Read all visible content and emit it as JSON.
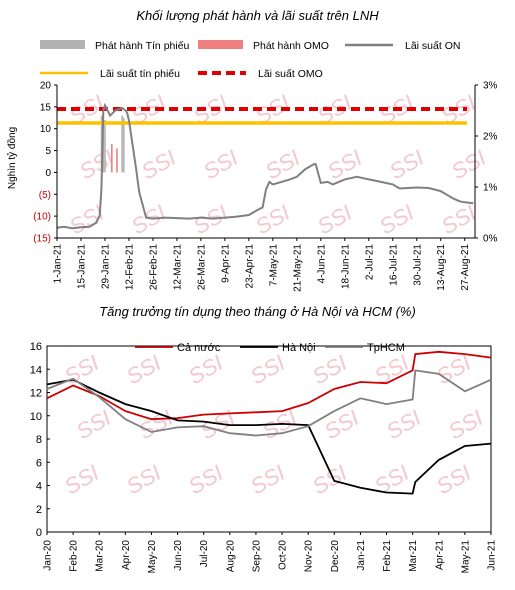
{
  "chart_data": [
    {
      "type": "line",
      "title": "Khối lượng phát hành và lãi suất trên LNH",
      "ylabel": "Nghìn tỷ đồng",
      "ylim": [
        -15,
        20
      ],
      "y2lim": [
        0,
        3
      ],
      "y_ticks": [
        "20",
        "15",
        "10",
        "5",
        "0",
        "(5)",
        "(10)",
        "(15)"
      ],
      "y_ticks_values": [
        20,
        15,
        10,
        5,
        0,
        -5,
        -10,
        -15
      ],
      "y2_ticks": [
        "3%",
        "2%",
        "1%",
        "0%"
      ],
      "y2_ticks_values": [
        3,
        2,
        1,
        0
      ],
      "x_range": [
        "2021-01-01",
        "2021-09-02"
      ],
      "x_ticks": [
        "1-Jan-21",
        "15-Jan-21",
        "29-Jan-21",
        "12-Feb-21",
        "26-Feb-21",
        "12-Mar-21",
        "26-Mar-21",
        "9-Apr-21",
        "23-Apr-21",
        "7-May-21",
        "21-May-21",
        "4-Jun-21",
        "18-Jun-21",
        "2-Jul-21",
        "16-Jul-21",
        "30-Jul-21",
        "13-Aug-21",
        "27-Aug-21"
      ],
      "x_ticks_dates": [
        "2021-01-01",
        "2021-01-15",
        "2021-01-29",
        "2021-02-12",
        "2021-02-26",
        "2021-03-12",
        "2021-03-26",
        "2021-04-09",
        "2021-04-23",
        "2021-05-07",
        "2021-05-21",
        "2021-06-04",
        "2021-06-18",
        "2021-07-02",
        "2021-07-16",
        "2021-07-30",
        "2021-08-13",
        "2021-08-27"
      ],
      "legend": [
        {
          "label": "Phát hành Tín phiếu",
          "color": "#b3b3b3",
          "style": "bar"
        },
        {
          "label": "Phát hành OMO",
          "color": "#f08080",
          "style": "bar"
        },
        {
          "label": "Lãi suất ON",
          "color": "#808080",
          "style": "line"
        },
        {
          "label": "Lãi suất tín phiếu",
          "color": "#ffc000",
          "style": "line"
        },
        {
          "label": "Lãi suất OMO",
          "color": "#e00000",
          "style": "dashed"
        }
      ],
      "series": [
        {
          "name": "Phát hành Tín phiếu",
          "axis": "left",
          "kind": "bar",
          "points": [
            {
              "x": "2021-01-27",
              "y": 13.0
            },
            {
              "x": "2021-01-28",
              "y": 14.0
            },
            {
              "x": "2021-01-29",
              "y": 12.0
            },
            {
              "x": "2021-02-08",
              "y": 13.0
            },
            {
              "x": "2021-02-09",
              "y": 12.5
            }
          ]
        },
        {
          "name": "Phát hành OMO",
          "axis": "left",
          "kind": "bar",
          "points": [
            {
              "x": "2021-02-02",
              "y": 6.5
            },
            {
              "x": "2021-02-05",
              "y": 5.5
            }
          ]
        },
        {
          "name": "Lãi suất ON",
          "axis": "right",
          "kind": "line",
          "points": [
            {
              "x": "2021-01-01",
              "y": 0.2
            },
            {
              "x": "2021-01-05",
              "y": 0.22
            },
            {
              "x": "2021-01-10",
              "y": 0.19
            },
            {
              "x": "2021-01-15",
              "y": 0.21
            },
            {
              "x": "2021-01-20",
              "y": 0.22
            },
            {
              "x": "2021-01-24",
              "y": 0.3
            },
            {
              "x": "2021-01-26",
              "y": 0.45
            },
            {
              "x": "2021-01-27",
              "y": 1.0
            },
            {
              "x": "2021-01-28",
              "y": 2.5
            },
            {
              "x": "2021-01-29",
              "y": 2.6
            },
            {
              "x": "2021-02-01",
              "y": 2.4
            },
            {
              "x": "2021-02-04",
              "y": 2.5
            },
            {
              "x": "2021-02-08",
              "y": 2.55
            },
            {
              "x": "2021-02-10",
              "y": 2.5
            },
            {
              "x": "2021-02-11",
              "y": 2.45
            },
            {
              "x": "2021-02-12",
              "y": 2.3
            },
            {
              "x": "2021-02-16",
              "y": 1.4
            },
            {
              "x": "2021-02-18",
              "y": 0.9
            },
            {
              "x": "2021-02-22",
              "y": 0.4
            },
            {
              "x": "2021-02-26",
              "y": 0.38
            },
            {
              "x": "2021-03-05",
              "y": 0.4
            },
            {
              "x": "2021-03-12",
              "y": 0.39
            },
            {
              "x": "2021-03-19",
              "y": 0.38
            },
            {
              "x": "2021-03-26",
              "y": 0.4
            },
            {
              "x": "2021-04-02",
              "y": 0.38
            },
            {
              "x": "2021-04-09",
              "y": 0.4
            },
            {
              "x": "2021-04-16",
              "y": 0.42
            },
            {
              "x": "2021-04-23",
              "y": 0.45
            },
            {
              "x": "2021-04-28",
              "y": 0.55
            },
            {
              "x": "2021-05-01",
              "y": 0.6
            },
            {
              "x": "2021-05-03",
              "y": 0.95
            },
            {
              "x": "2021-05-05",
              "y": 1.1
            },
            {
              "x": "2021-05-07",
              "y": 1.05
            },
            {
              "x": "2021-05-12",
              "y": 1.1
            },
            {
              "x": "2021-05-17",
              "y": 1.15
            },
            {
              "x": "2021-05-21",
              "y": 1.2
            },
            {
              "x": "2021-05-26",
              "y": 1.35
            },
            {
              "x": "2021-05-31",
              "y": 1.45
            },
            {
              "x": "2021-06-01",
              "y": 1.45
            },
            {
              "x": "2021-06-03",
              "y": 1.2
            },
            {
              "x": "2021-06-04",
              "y": 1.08
            },
            {
              "x": "2021-06-08",
              "y": 1.1
            },
            {
              "x": "2021-06-11",
              "y": 1.05
            },
            {
              "x": "2021-06-18",
              "y": 1.15
            },
            {
              "x": "2021-06-25",
              "y": 1.2
            },
            {
              "x": "2021-07-02",
              "y": 1.15
            },
            {
              "x": "2021-07-09",
              "y": 1.1
            },
            {
              "x": "2021-07-16",
              "y": 1.05
            },
            {
              "x": "2021-07-20",
              "y": 0.97
            },
            {
              "x": "2021-07-30",
              "y": 0.99
            },
            {
              "x": "2021-08-06",
              "y": 0.98
            },
            {
              "x": "2021-08-13",
              "y": 0.92
            },
            {
              "x": "2021-08-17",
              "y": 0.84
            },
            {
              "x": "2021-08-20",
              "y": 0.78
            },
            {
              "x": "2021-08-24",
              "y": 0.72
            },
            {
              "x": "2021-08-27",
              "y": 0.7
            },
            {
              "x": "2021-09-01",
              "y": 0.68
            }
          ]
        },
        {
          "name": "Lãi suất tín phiếu",
          "axis": "left",
          "kind": "hline",
          "y": 11.3
        },
        {
          "name": "Lãi suất OMO",
          "axis": "left",
          "kind": "hline",
          "y": 14.5
        }
      ]
    },
    {
      "type": "line",
      "title": "Tăng trưởng tín dụng theo tháng ở Hà Nội và HCM (%)",
      "ylim": [
        0,
        16
      ],
      "y_ticks": [
        "0",
        "2",
        "4",
        "6",
        "8",
        "10",
        "12",
        "14",
        "16"
      ],
      "y_ticks_values": [
        0,
        2,
        4,
        6,
        8,
        10,
        12,
        14,
        16
      ],
      "categories": [
        "Jan-20",
        "Feb-20",
        "Mar-20",
        "Apr-20",
        "May-20",
        "Jun-20",
        "Jul-20",
        "Aug-20",
        "Sep-20",
        "Oct-20",
        "Nov-20",
        "Dec-20",
        "Jan-21",
        "Feb-21",
        "Mar-21",
        "Apr-21",
        "May-21",
        "Jun-21"
      ],
      "legend_position": "top",
      "series": [
        {
          "name": "Cả nước",
          "color": "#cc0000",
          "points": [
            [
              0,
              11.5
            ],
            [
              1,
              12.6
            ],
            [
              2,
              11.7
            ],
            [
              3,
              10.4
            ],
            [
              4,
              9.7
            ],
            [
              5,
              9.8
            ],
            [
              6,
              10.1
            ],
            [
              7,
              10.2
            ],
            [
              8,
              10.3
            ],
            [
              9,
              10.4
            ],
            [
              10,
              11.1
            ],
            [
              11,
              12.3
            ],
            [
              12,
              12.9
            ],
            [
              13,
              12.8
            ],
            [
              14,
              13.9
            ],
            [
              14.1,
              15.3
            ],
            [
              15,
              15.5
            ],
            [
              16,
              15.3
            ],
            [
              17,
              15.0
            ]
          ]
        },
        {
          "name": "Hà Nội",
          "color": "#000000",
          "points": [
            [
              0,
              12.7
            ],
            [
              1,
              13.1
            ],
            [
              2,
              12.0
            ],
            [
              3,
              11.0
            ],
            [
              4,
              10.4
            ],
            [
              5,
              9.6
            ],
            [
              6,
              9.5
            ],
            [
              7,
              9.2
            ],
            [
              8,
              9.2
            ],
            [
              9,
              9.3
            ],
            [
              10,
              9.2
            ],
            [
              11,
              4.4
            ],
            [
              12,
              3.8
            ],
            [
              13,
              3.4
            ],
            [
              14,
              3.3
            ],
            [
              14.1,
              4.3
            ],
            [
              15,
              6.2
            ],
            [
              16,
              7.4
            ],
            [
              17,
              7.6
            ]
          ]
        },
        {
          "name": "TpHCM",
          "color": "#808080",
          "points": [
            [
              0,
              12.3
            ],
            [
              1,
              13.2
            ],
            [
              2,
              11.6
            ],
            [
              3,
              9.7
            ],
            [
              4,
              8.6
            ],
            [
              5,
              9.0
            ],
            [
              6,
              9.1
            ],
            [
              7,
              8.5
            ],
            [
              8,
              8.3
            ],
            [
              9,
              8.5
            ],
            [
              10,
              9.1
            ],
            [
              11,
              10.4
            ],
            [
              12,
              11.5
            ],
            [
              13,
              11.0
            ],
            [
              14,
              11.4
            ],
            [
              14.1,
              13.9
            ],
            [
              15,
              13.6
            ],
            [
              16,
              12.1
            ],
            [
              17,
              13.1
            ]
          ]
        }
      ]
    }
  ],
  "watermark": "SSI"
}
